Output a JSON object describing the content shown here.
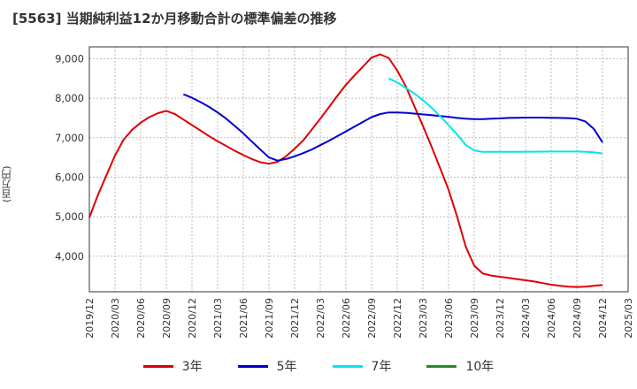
{
  "title": "[5563]  当期純利益12か月移動合計の標準偏差の推移",
  "chart_data": {
    "type": "line",
    "title": "[5563]  当期純利益12か月移動合計の標準偏差の推移",
    "ylabel": "(百万円)",
    "xlabel": "",
    "ylim": [
      3100,
      9300
    ],
    "xlim": [
      "2019-12",
      "2025-03"
    ],
    "grid": true,
    "legend_position": "bottom",
    "yticks": [
      "4,000",
      "5,000",
      "6,000",
      "7,000",
      "8,000",
      "9,000"
    ],
    "xticks": [
      "2019/12",
      "2020/03",
      "2020/06",
      "2020/09",
      "2020/12",
      "2021/03",
      "2021/06",
      "2021/09",
      "2021/12",
      "2022/03",
      "2022/06",
      "2022/09",
      "2022/12",
      "2023/03",
      "2023/06",
      "2023/09",
      "2023/12",
      "2024/03",
      "2024/06",
      "2024/09",
      "2024/12",
      "2025/03"
    ],
    "series": [
      {
        "name": "3年",
        "color": "#dd0000",
        "points": [
          [
            "2019-12",
            4980
          ],
          [
            "2020-01",
            5550
          ],
          [
            "2020-02",
            6050
          ],
          [
            "2020-03",
            6550
          ],
          [
            "2020-04",
            6950
          ],
          [
            "2020-05",
            7200
          ],
          [
            "2020-06",
            7380
          ],
          [
            "2020-07",
            7520
          ],
          [
            "2020-08",
            7620
          ],
          [
            "2020-09",
            7680
          ],
          [
            "2020-10",
            7600
          ],
          [
            "2020-11",
            7460
          ],
          [
            "2020-12",
            7320
          ],
          [
            "2021-01",
            7180
          ],
          [
            "2021-02",
            7040
          ],
          [
            "2021-03",
            6910
          ],
          [
            "2021-04",
            6790
          ],
          [
            "2021-05",
            6670
          ],
          [
            "2021-06",
            6560
          ],
          [
            "2021-07",
            6460
          ],
          [
            "2021-08",
            6380
          ],
          [
            "2021-09",
            6340
          ],
          [
            "2021-10",
            6390
          ],
          [
            "2021-11",
            6530
          ],
          [
            "2021-12",
            6720
          ],
          [
            "2022-01",
            6930
          ],
          [
            "2022-02",
            7200
          ],
          [
            "2022-03",
            7480
          ],
          [
            "2022-04",
            7770
          ],
          [
            "2022-05",
            8060
          ],
          [
            "2022-06",
            8340
          ],
          [
            "2022-07",
            8580
          ],
          [
            "2022-08",
            8800
          ],
          [
            "2022-09",
            9030
          ],
          [
            "2022-10",
            9110
          ],
          [
            "2022-11",
            9020
          ],
          [
            "2022-12",
            8700
          ],
          [
            "2023-01",
            8300
          ],
          [
            "2023-02",
            7800
          ],
          [
            "2023-03",
            7300
          ],
          [
            "2023-04",
            6780
          ],
          [
            "2023-05",
            6240
          ],
          [
            "2023-06",
            5680
          ],
          [
            "2023-07",
            5000
          ],
          [
            "2023-08",
            4250
          ],
          [
            "2023-09",
            3760
          ],
          [
            "2023-10",
            3560
          ],
          [
            "2023-11",
            3510
          ],
          [
            "2023-12",
            3480
          ],
          [
            "2024-01",
            3450
          ],
          [
            "2024-02",
            3420
          ],
          [
            "2024-03",
            3390
          ],
          [
            "2024-04",
            3360
          ],
          [
            "2024-05",
            3320
          ],
          [
            "2024-06",
            3280
          ],
          [
            "2024-07",
            3250
          ],
          [
            "2024-08",
            3230
          ],
          [
            "2024-09",
            3220
          ],
          [
            "2024-10",
            3230
          ],
          [
            "2024-11",
            3250
          ],
          [
            "2024-12",
            3270
          ]
        ]
      },
      {
        "name": "5年",
        "color": "#0000cc",
        "points": [
          [
            "2020-11",
            8100
          ],
          [
            "2020-12",
            8010
          ],
          [
            "2021-01",
            7900
          ],
          [
            "2021-02",
            7780
          ],
          [
            "2021-03",
            7640
          ],
          [
            "2021-04",
            7480
          ],
          [
            "2021-05",
            7300
          ],
          [
            "2021-06",
            7110
          ],
          [
            "2021-07",
            6900
          ],
          [
            "2021-08",
            6700
          ],
          [
            "2021-09",
            6500
          ],
          [
            "2021-10",
            6420
          ],
          [
            "2021-11",
            6460
          ],
          [
            "2021-12",
            6530
          ],
          [
            "2022-01",
            6610
          ],
          [
            "2022-02",
            6700
          ],
          [
            "2022-03",
            6810
          ],
          [
            "2022-04",
            6920
          ],
          [
            "2022-05",
            7040
          ],
          [
            "2022-06",
            7160
          ],
          [
            "2022-07",
            7280
          ],
          [
            "2022-08",
            7400
          ],
          [
            "2022-09",
            7520
          ],
          [
            "2022-10",
            7600
          ],
          [
            "2022-11",
            7640
          ],
          [
            "2022-12",
            7640
          ],
          [
            "2023-01",
            7630
          ],
          [
            "2023-02",
            7610
          ],
          [
            "2023-03",
            7590
          ],
          [
            "2023-04",
            7570
          ],
          [
            "2023-05",
            7550
          ],
          [
            "2023-06",
            7530
          ],
          [
            "2023-07",
            7500
          ],
          [
            "2023-08",
            7480
          ],
          [
            "2023-09",
            7470
          ],
          [
            "2023-10",
            7470
          ],
          [
            "2023-11",
            7480
          ],
          [
            "2023-12",
            7490
          ],
          [
            "2024-01",
            7500
          ],
          [
            "2024-02",
            7505
          ],
          [
            "2024-03",
            7510
          ],
          [
            "2024-04",
            7510
          ],
          [
            "2024-05",
            7510
          ],
          [
            "2024-06",
            7505
          ],
          [
            "2024-07",
            7500
          ],
          [
            "2024-08",
            7495
          ],
          [
            "2024-09",
            7480
          ],
          [
            "2024-10",
            7410
          ],
          [
            "2024-11",
            7220
          ],
          [
            "2024-12",
            6880
          ]
        ]
      },
      {
        "name": "7年",
        "color": "#00e5ee",
        "points": [
          [
            "2022-11",
            8500
          ],
          [
            "2022-12",
            8400
          ],
          [
            "2023-01",
            8260
          ],
          [
            "2023-02",
            8120
          ],
          [
            "2023-03",
            7950
          ],
          [
            "2023-04",
            7760
          ],
          [
            "2023-05",
            7550
          ],
          [
            "2023-06",
            7320
          ],
          [
            "2023-07",
            7080
          ],
          [
            "2023-08",
            6820
          ],
          [
            "2023-09",
            6680
          ],
          [
            "2023-10",
            6640
          ],
          [
            "2023-11",
            6640
          ],
          [
            "2023-12",
            6640
          ],
          [
            "2024-01",
            6640
          ],
          [
            "2024-02",
            6640
          ],
          [
            "2024-03",
            6645
          ],
          [
            "2024-04",
            6645
          ],
          [
            "2024-05",
            6648
          ],
          [
            "2024-06",
            6650
          ],
          [
            "2024-07",
            6650
          ],
          [
            "2024-08",
            6650
          ],
          [
            "2024-09",
            6650
          ],
          [
            "2024-10",
            6645
          ],
          [
            "2024-11",
            6630
          ],
          [
            "2024-12",
            6600
          ]
        ]
      },
      {
        "name": "10年",
        "color": "#228b22",
        "points": []
      }
    ]
  }
}
